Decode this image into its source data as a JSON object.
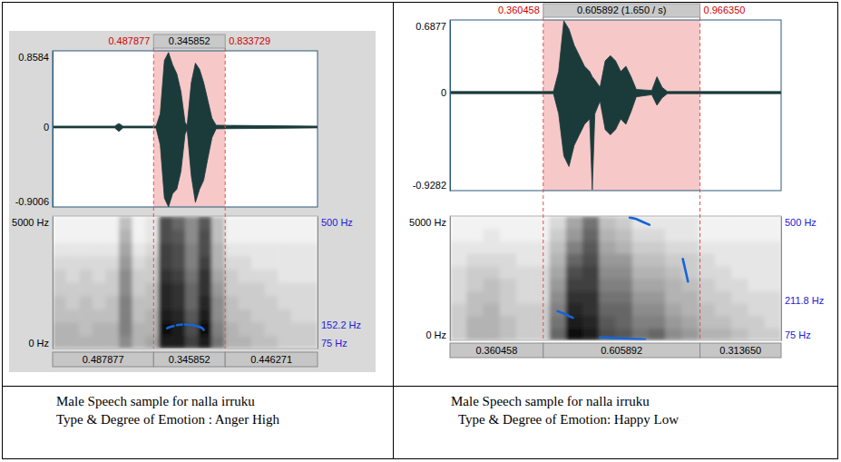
{
  "chart_data": [
    {
      "type": "spectrogram",
      "xlim": [
        0,
        1.28
      ],
      "header": {
        "start": 0.487877,
        "duration": 0.345852,
        "end": 0.833729
      },
      "footer": [
        0.487877,
        0.345852,
        0.446271
      ],
      "waveform": {
        "ylim": [
          -0.9006,
          0.8584
        ],
        "yticks": [
          -0.9006,
          0,
          0.8584
        ],
        "color": "#1b3b3b",
        "x": [
          0,
          0.3,
          0.32,
          0.34,
          0.5,
          0.52,
          0.54,
          0.56,
          0.58,
          0.6,
          0.62,
          0.64,
          0.65,
          0.67,
          0.69,
          0.71,
          0.73,
          0.75,
          0.77,
          0.79,
          1.28
        ],
        "upper": [
          0.01,
          0.01,
          0.04,
          0.01,
          0.01,
          0.15,
          0.75,
          0.84,
          0.7,
          0.6,
          0.4,
          0.05,
          0.02,
          0.5,
          0.72,
          0.65,
          0.5,
          0.3,
          0.1,
          0.02,
          0.01
        ],
        "lower": [
          -0.01,
          -0.01,
          -0.05,
          -0.01,
          -0.01,
          -0.2,
          -0.8,
          -0.9,
          -0.75,
          -0.7,
          -0.5,
          -0.08,
          -0.03,
          -0.55,
          -0.85,
          -0.7,
          -0.6,
          -0.35,
          -0.12,
          -0.02,
          -0.01
        ]
      },
      "spectrogram": {
        "ylim": [
          0,
          5000
        ],
        "yticks": [
          {
            "value": 0,
            "label": "0 Hz"
          },
          {
            "value": 5000,
            "label": "5000 Hz"
          }
        ],
        "zlim": [
          0,
          1
        ],
        "x_edges": [
          0,
          0.064,
          0.128,
          0.192,
          0.256,
          0.32,
          0.384,
          0.448,
          0.512,
          0.576,
          0.64,
          0.704,
          0.768,
          0.832,
          0.896,
          0.96,
          1.024,
          1.088,
          1.152,
          1.216,
          1.28
        ],
        "y_edges": [
          0,
          500,
          1000,
          1500,
          2000,
          2500,
          3000,
          3500,
          4000,
          4500,
          5000
        ],
        "cells": [
          [
            0.3,
            0.3,
            0.3,
            0.3,
            0.3,
            0.45,
            0.3,
            0.35,
            0.9,
            0.9,
            0.75,
            0.9,
            0.55,
            0.3,
            0.3,
            0.25,
            0.25,
            0.2,
            0.2,
            0.2
          ],
          [
            0.3,
            0.3,
            0.25,
            0.3,
            0.3,
            0.5,
            0.3,
            0.3,
            0.95,
            0.9,
            0.7,
            0.95,
            0.5,
            0.3,
            0.25,
            0.25,
            0.2,
            0.2,
            0.2,
            0.2
          ],
          [
            0.25,
            0.25,
            0.25,
            0.25,
            0.25,
            0.5,
            0.25,
            0.3,
            0.9,
            0.85,
            0.65,
            0.9,
            0.45,
            0.25,
            0.25,
            0.2,
            0.2,
            0.2,
            0.15,
            0.15
          ],
          [
            0.25,
            0.2,
            0.25,
            0.2,
            0.25,
            0.5,
            0.25,
            0.25,
            0.85,
            0.8,
            0.6,
            0.85,
            0.45,
            0.25,
            0.2,
            0.2,
            0.2,
            0.15,
            0.15,
            0.15
          ],
          [
            0.2,
            0.2,
            0.2,
            0.2,
            0.2,
            0.45,
            0.2,
            0.25,
            0.85,
            0.8,
            0.6,
            0.8,
            0.4,
            0.2,
            0.2,
            0.2,
            0.15,
            0.15,
            0.15,
            0.15
          ],
          [
            0.2,
            0.15,
            0.2,
            0.15,
            0.2,
            0.45,
            0.2,
            0.2,
            0.8,
            0.75,
            0.55,
            0.8,
            0.35,
            0.2,
            0.15,
            0.15,
            0.15,
            0.1,
            0.1,
            0.1
          ],
          [
            0.15,
            0.15,
            0.15,
            0.15,
            0.15,
            0.4,
            0.15,
            0.2,
            0.75,
            0.7,
            0.5,
            0.75,
            0.3,
            0.15,
            0.15,
            0.1,
            0.1,
            0.1,
            0.1,
            0.1
          ],
          [
            0.1,
            0.1,
            0.1,
            0.1,
            0.1,
            0.35,
            0.1,
            0.15,
            0.75,
            0.7,
            0.5,
            0.7,
            0.3,
            0.1,
            0.1,
            0.1,
            0.1,
            0.1,
            0.1,
            0.1
          ],
          [
            0.05,
            0.05,
            0.05,
            0.05,
            0.05,
            0.3,
            0.05,
            0.1,
            0.7,
            0.65,
            0.45,
            0.7,
            0.25,
            0.05,
            0.05,
            0.05,
            0.05,
            0.05,
            0.05,
            0.05
          ],
          [
            0.05,
            0.05,
            0.05,
            0.05,
            0.05,
            0.25,
            0.05,
            0.1,
            0.7,
            0.6,
            0.45,
            0.65,
            0.25,
            0.05,
            0.05,
            0.05,
            0.05,
            0.05,
            0.05,
            0.05
          ]
        ]
      },
      "pitch": {
        "ylim": [
          75,
          500
        ],
        "yticks": [
          {
            "value": 75,
            "label": "75 Hz"
          },
          {
            "value": 152.2,
            "label": "152.2 Hz"
          },
          {
            "value": 500,
            "label": "500 Hz"
          }
        ],
        "color": "#1565d8",
        "x": [
          0.553,
          0.57,
          0.585,
          0.592,
          0.6,
          0.625,
          0.632,
          0.64,
          0.68,
          0.72,
          0.73
        ],
        "values": [
          140,
          145,
          147,
          null,
          150,
          152,
          null,
          152,
          150,
          142,
          135
        ]
      },
      "caption": [
        "Male Speech sample for nalla irruku",
        "Type & Degree of Emotion : Anger High"
      ]
    },
    {
      "type": "spectrogram",
      "xlim": [
        0,
        1.28
      ],
      "header": {
        "start": 0.360458,
        "duration": {
          "value": 0.605892,
          "label": "0.605892 (1.650 / s)"
        },
        "end": {
          "value": 0.96635,
          "label": "0.966350"
        }
      },
      "footer": [
        0.360458,
        0.605892,
        {
          "value": 0.31365,
          "label": "0.313650"
        }
      ],
      "waveform": {
        "ylim": [
          -0.9282,
          0.6877
        ],
        "yticks": [
          -0.9282,
          0,
          0.6877
        ],
        "color": "#1b3b3b",
        "x": [
          0,
          0.4,
          0.42,
          0.44,
          0.46,
          0.48,
          0.5,
          0.52,
          0.54,
          0.55,
          0.56,
          0.58,
          0.6,
          0.62,
          0.64,
          0.66,
          0.68,
          0.7,
          0.72,
          0.78,
          0.8,
          0.82,
          0.84,
          1.28
        ],
        "upper": [
          0.01,
          0.01,
          0.2,
          0.68,
          0.6,
          0.45,
          0.35,
          0.25,
          0.2,
          0.15,
          0.12,
          0.05,
          0.3,
          0.35,
          0.3,
          0.2,
          0.25,
          0.15,
          0.03,
          0.02,
          0.15,
          0.05,
          0.01,
          0.01
        ],
        "lower": [
          -0.01,
          -0.01,
          -0.2,
          -0.6,
          -0.7,
          -0.5,
          -0.4,
          -0.3,
          -0.25,
          -0.92,
          -0.2,
          -0.08,
          -0.35,
          -0.4,
          -0.35,
          -0.25,
          -0.3,
          -0.18,
          -0.04,
          -0.02,
          -0.12,
          -0.05,
          -0.01,
          -0.01
        ]
      },
      "spectrogram": {
        "ylim": [
          0,
          5000
        ],
        "yticks": [
          {
            "value": 0,
            "label": "0 Hz"
          },
          {
            "value": 5000,
            "label": "5000 Hz"
          }
        ],
        "zlim": [
          0,
          1
        ],
        "x_edges": [
          0,
          0.064,
          0.128,
          0.192,
          0.256,
          0.32,
          0.384,
          0.448,
          0.512,
          0.576,
          0.64,
          0.704,
          0.768,
          0.832,
          0.896,
          0.96,
          1.024,
          1.088,
          1.152,
          1.216,
          1.28
        ],
        "y_edges": [
          0,
          500,
          1000,
          1500,
          2000,
          2500,
          3000,
          3500,
          4000,
          4500,
          5000
        ],
        "cells": [
          [
            0.2,
            0.3,
            0.3,
            0.25,
            0.2,
            0.2,
            0.6,
            0.95,
            0.9,
            0.7,
            0.65,
            0.55,
            0.6,
            0.45,
            0.4,
            0.3,
            0.3,
            0.25,
            0.2,
            0.2
          ],
          [
            0.2,
            0.3,
            0.3,
            0.25,
            0.2,
            0.2,
            0.55,
            0.9,
            0.85,
            0.65,
            0.6,
            0.5,
            0.5,
            0.4,
            0.35,
            0.25,
            0.25,
            0.2,
            0.2,
            0.15
          ],
          [
            0.2,
            0.25,
            0.3,
            0.2,
            0.2,
            0.2,
            0.5,
            0.85,
            0.8,
            0.6,
            0.6,
            0.45,
            0.45,
            0.35,
            0.3,
            0.25,
            0.2,
            0.2,
            0.15,
            0.15
          ],
          [
            0.15,
            0.25,
            0.25,
            0.2,
            0.15,
            0.15,
            0.45,
            0.8,
            0.8,
            0.55,
            0.55,
            0.4,
            0.4,
            0.3,
            0.3,
            0.2,
            0.2,
            0.15,
            0.15,
            0.15
          ],
          [
            0.15,
            0.2,
            0.25,
            0.2,
            0.15,
            0.15,
            0.4,
            0.75,
            0.75,
            0.5,
            0.5,
            0.35,
            0.35,
            0.3,
            0.25,
            0.2,
            0.15,
            0.15,
            0.1,
            0.1
          ],
          [
            0.15,
            0.2,
            0.2,
            0.15,
            0.15,
            0.15,
            0.35,
            0.7,
            0.75,
            0.45,
            0.45,
            0.3,
            0.3,
            0.25,
            0.2,
            0.15,
            0.15,
            0.1,
            0.1,
            0.1
          ],
          [
            0.1,
            0.15,
            0.15,
            0.15,
            0.1,
            0.1,
            0.3,
            0.6,
            0.7,
            0.4,
            0.4,
            0.25,
            0.25,
            0.2,
            0.2,
            0.15,
            0.1,
            0.1,
            0.1,
            0.1
          ],
          [
            0.1,
            0.1,
            0.1,
            0.1,
            0.1,
            0.1,
            0.25,
            0.5,
            0.65,
            0.35,
            0.3,
            0.2,
            0.2,
            0.15,
            0.15,
            0.1,
            0.1,
            0.1,
            0.1,
            0.1
          ],
          [
            0.05,
            0.05,
            0.1,
            0.05,
            0.05,
            0.05,
            0.2,
            0.4,
            0.6,
            0.3,
            0.25,
            0.15,
            0.15,
            0.1,
            0.1,
            0.05,
            0.05,
            0.05,
            0.05,
            0.05
          ],
          [
            0.05,
            0.05,
            0.05,
            0.05,
            0.05,
            0.05,
            0.15,
            0.35,
            0.55,
            0.25,
            0.2,
            0.1,
            0.1,
            0.1,
            0.1,
            0.05,
            0.05,
            0.05,
            0.05,
            0.05
          ]
        ]
      },
      "pitch": {
        "ylim": [
          75,
          500
        ],
        "yticks": [
          {
            "value": 75,
            "label": "75 Hz"
          },
          {
            "value": 211.8,
            "label": "211.8 Hz"
          },
          {
            "value": 500,
            "label": "500 Hz"
          }
        ],
        "color": "#1565d8",
        "x": [
          0.416,
          0.43,
          0.445,
          0.46,
          0.475,
          0.5,
          0.58,
          0.62,
          0.66,
          0.7,
          0.74,
          0.754,
          0.76,
          0.695,
          0.72,
          0.745,
          0.771,
          0.8,
          0.9,
          0.91,
          0.92
        ],
        "values": [
          175,
          170,
          165,
          158,
          152,
          null,
          86,
          84,
          82,
          80,
          79,
          78,
          null,
          495,
          490,
          480,
          470,
          null,
          353,
          315,
          276
        ]
      },
      "caption": [
        "Male Speech sample for nalla irruku",
        "Type & Degree of Emotion: Happy Low"
      ]
    }
  ]
}
